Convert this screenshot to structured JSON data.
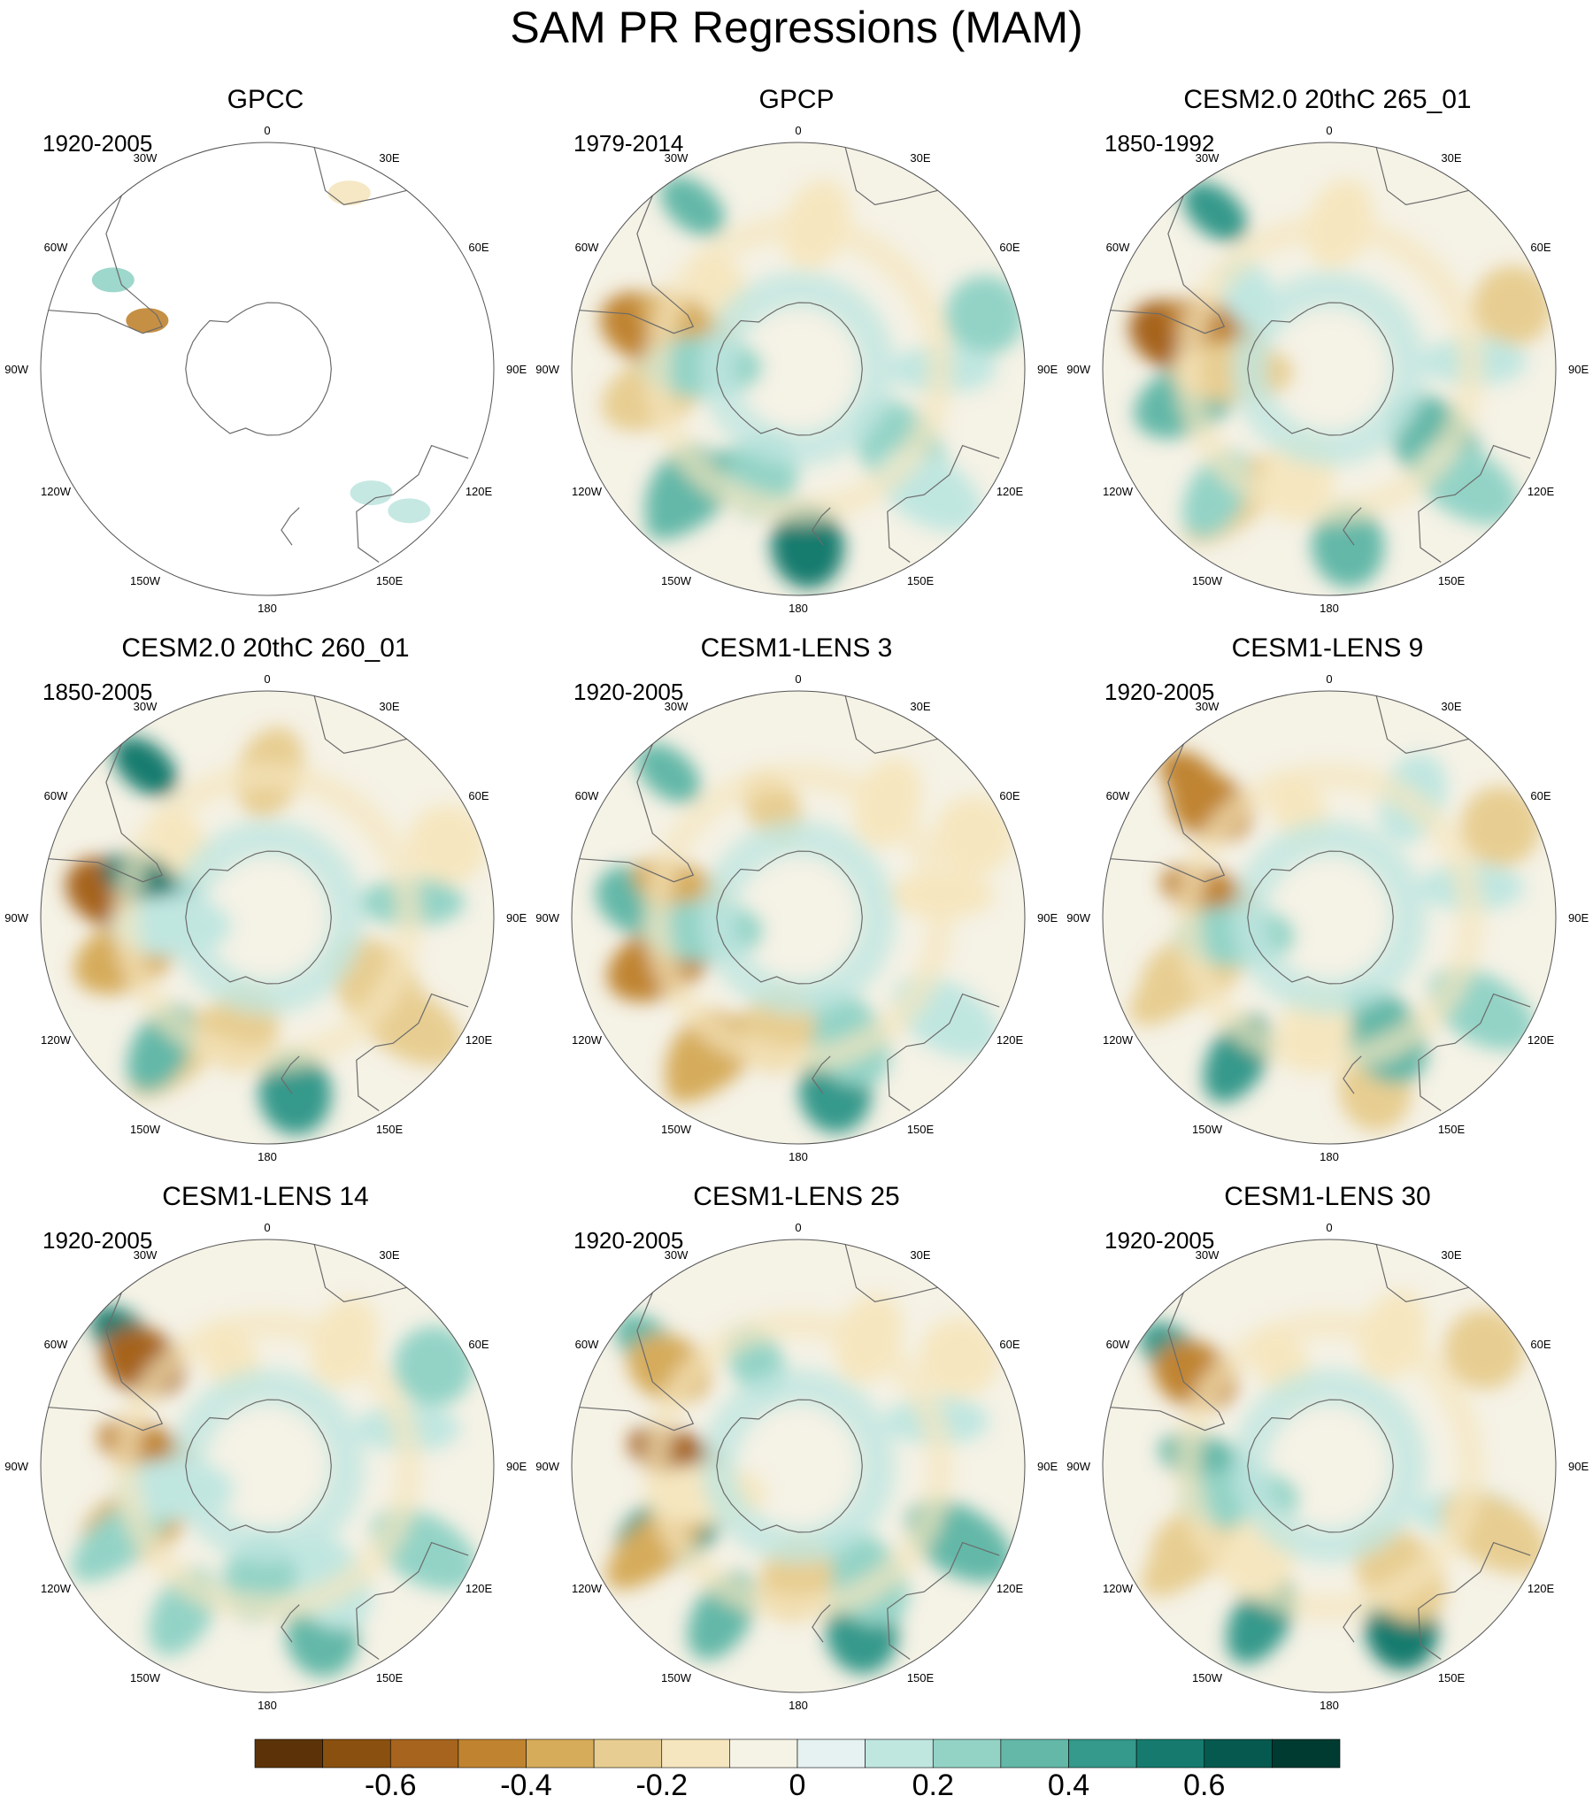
{
  "title": "SAM PR Regressions (MAM)",
  "panels": [
    {
      "title": "GPCC",
      "period": "1920-2005"
    },
    {
      "title": "GPCP",
      "period": "1979-2014"
    },
    {
      "title": "CESM2.0 20thC 265_01",
      "period": "1850-1992"
    },
    {
      "title": "CESM2.0 20thC 260_01",
      "period": "1850-2005"
    },
    {
      "title": "CESM1-LENS 3",
      "period": "1920-2005"
    },
    {
      "title": "CESM1-LENS 9",
      "period": "1920-2005"
    },
    {
      "title": "CESM1-LENS 14",
      "period": "1920-2005"
    },
    {
      "title": "CESM1-LENS 25",
      "period": "1920-2005"
    },
    {
      "title": "CESM1-LENS 30",
      "period": "1920-2005"
    }
  ],
  "longitude_labels": [
    "0",
    "30E",
    "60E",
    "90E",
    "120E",
    "150E",
    "180",
    "150W",
    "120W",
    "90W",
    "60W",
    "30W"
  ],
  "map": {
    "projection": "south polar stereographic",
    "features": [
      {
        "lon": -50,
        "lat": -30,
        "value": 0.5
      },
      {
        "lon": -65,
        "lat": -40,
        "value": -0.6
      },
      {
        "lon": -70,
        "lat": -52,
        "value": -0.55
      },
      {
        "lon": -115,
        "lat": -45,
        "value": -0.4
      },
      {
        "lon": -130,
        "lat": -40,
        "value": -0.35
      },
      {
        "lon": 175,
        "lat": -35,
        "value": 0.5
      },
      {
        "lon": -150,
        "lat": -38,
        "value": 0.4
      },
      {
        "lon": 140,
        "lat": -50,
        "value": 0.3
      },
      {
        "lon": -90,
        "lat": -60,
        "value": 0.25
      },
      {
        "lon": 60,
        "lat": -30,
        "value": -0.25
      },
      {
        "lon": 20,
        "lat": -45,
        "value": -0.2
      },
      {
        "lon": 90,
        "lat": -45,
        "value": 0.2
      },
      {
        "lon": 120,
        "lat": -35,
        "value": 0.3
      },
      {
        "lon": -30,
        "lat": -55,
        "value": -0.2
      },
      {
        "lon": -160,
        "lat": -55,
        "value": -0.25
      }
    ]
  },
  "colorbar": {
    "colors": [
      "#5c3308",
      "#8a500f",
      "#a6641e",
      "#c08430",
      "#d6ac5b",
      "#e7cd91",
      "#f5e6bf",
      "#f5f2e6",
      "#e6f2f1",
      "#c0e6e0",
      "#93d3c6",
      "#63b8a8",
      "#35998b",
      "#167b6e",
      "#06594e",
      "#003b31"
    ],
    "tick_labels": [
      "-0.6",
      "-0.4",
      "-0.2",
      "0",
      "0.2",
      "0.4",
      "0.6"
    ],
    "tick_values": [
      -0.6,
      -0.4,
      -0.2,
      0,
      0.2,
      0.4,
      0.6
    ],
    "range": [
      -0.8,
      0.8
    ]
  }
}
